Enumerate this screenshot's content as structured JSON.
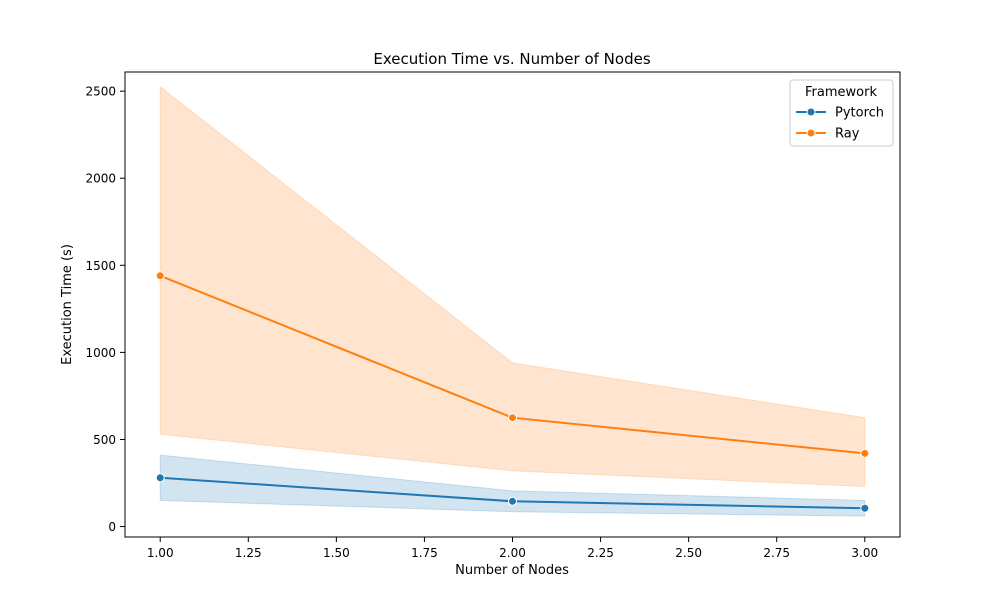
{
  "chart_data": {
    "type": "line",
    "title": "Execution Time vs. Number of Nodes",
    "xlabel": "Number of Nodes",
    "ylabel": "Execution Time (s)",
    "xlim": [
      0.9,
      3.1
    ],
    "ylim": [
      -60,
      2610
    ],
    "xticks": [
      1.0,
      1.25,
      1.5,
      1.75,
      2.0,
      2.25,
      2.5,
      2.75,
      3.0
    ],
    "xtick_labels": [
      "1.00",
      "1.25",
      "1.50",
      "1.75",
      "2.00",
      "2.25",
      "2.50",
      "2.75",
      "3.00"
    ],
    "yticks": [
      0,
      500,
      1000,
      1500,
      2000,
      2500
    ],
    "ytick_labels": [
      "0",
      "500",
      "1000",
      "1500",
      "2000",
      "2500"
    ],
    "grid": false,
    "legend": {
      "title": "Framework",
      "placement": "top-right"
    },
    "series": [
      {
        "name": "Pytorch",
        "color": "#1f77b4",
        "x": [
          1,
          2,
          3
        ],
        "y": [
          280,
          145,
          105
        ],
        "ci_lower": [
          150,
          85,
          60
        ],
        "ci_upper": [
          410,
          205,
          150
        ]
      },
      {
        "name": "Ray",
        "color": "#ff7f0e",
        "x": [
          1,
          2,
          3
        ],
        "y": [
          1440,
          625,
          420
        ],
        "ci_lower": [
          530,
          320,
          230
        ],
        "ci_upper": [
          2525,
          940,
          625
        ]
      }
    ]
  }
}
